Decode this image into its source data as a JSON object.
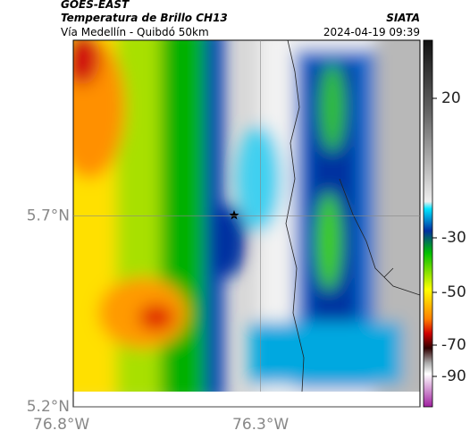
{
  "header": {
    "source": "GOES-EAST",
    "product": "Temperatura de Brillo CH13",
    "route": "Vía Medellín - Quibdó 50km",
    "agency": "SIATA",
    "datetime": "2024-04-19 09:39"
  },
  "map": {
    "lat_lim": [
      5.2,
      6.16
    ],
    "lon_lim": [
      -76.77,
      -75.9
    ],
    "lat_ticks": [
      {
        "value": 5.7,
        "label": "5.7°N"
      },
      {
        "value": 5.2,
        "label": "5.2°N"
      }
    ],
    "lon_ticks": [
      {
        "value": -76.8,
        "label": "76.8°W"
      },
      {
        "value": -76.3,
        "label": "76.3°W"
      }
    ]
  },
  "colorbar": {
    "ticks": [
      20,
      -30,
      -50,
      -70,
      -90
    ]
  }
}
